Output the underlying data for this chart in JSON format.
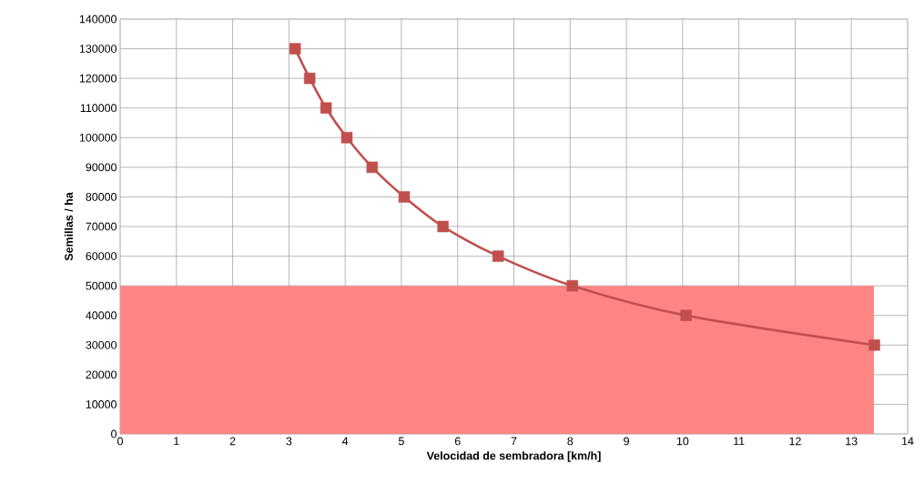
{
  "chart_data": {
    "type": "line",
    "xlabel": "Velocidad de sembradora [km/h]",
    "ylabel": "Semillas  / ha",
    "xlim": [
      0,
      14
    ],
    "xticks": [
      0,
      1,
      2,
      3,
      4,
      5,
      6,
      7,
      8,
      9,
      10,
      11,
      12,
      13,
      14
    ],
    "ylim": [
      0,
      140000
    ],
    "yticks": [
      0,
      10000,
      20000,
      30000,
      40000,
      50000,
      60000,
      70000,
      80000,
      90000,
      100000,
      110000,
      120000,
      130000,
      140000
    ],
    "grid": true,
    "series": [
      {
        "type": "area",
        "color": "#ff8585",
        "x": [
          0,
          13.4
        ],
        "values": [
          50000,
          50000
        ]
      },
      {
        "color": "#c0504d",
        "marker": "square",
        "x": [
          3.11,
          3.37,
          3.66,
          4.03,
          4.48,
          5.05,
          5.74,
          6.72,
          8.04,
          10.06,
          13.41
        ],
        "values": [
          130000,
          120000,
          110000,
          100000,
          90000,
          80000,
          70000,
          60000,
          50000,
          40000,
          30000
        ]
      }
    ]
  }
}
